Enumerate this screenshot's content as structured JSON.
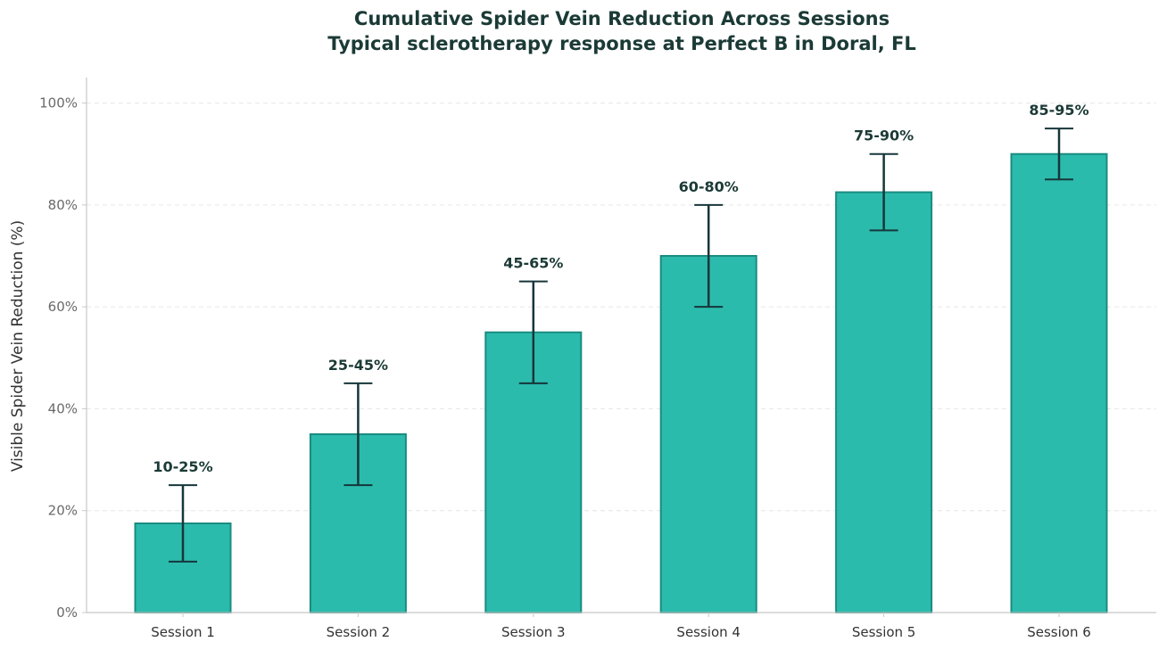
{
  "chart_data": {
    "type": "bar",
    "title": "Cumulative Spider Vein Reduction Across Sessions",
    "subtitle": "Typical sclerotherapy response at Perfect B in Doral, FL",
    "xlabel": "",
    "ylabel": "Visible Spider Vein Reduction (%)",
    "ylim": [
      0,
      105
    ],
    "yticks": [
      0,
      20,
      40,
      60,
      80,
      100
    ],
    "ytick_labels": [
      "0%",
      "20%",
      "40%",
      "60%",
      "80%",
      "100%"
    ],
    "categories": [
      "Session 1",
      "Session 2",
      "Session 3",
      "Session 4",
      "Session 5",
      "Session 6"
    ],
    "values": [
      17.5,
      35,
      55,
      70,
      82.5,
      90
    ],
    "error_low": [
      10,
      25,
      45,
      60,
      75,
      85
    ],
    "error_high": [
      25,
      45,
      65,
      80,
      90,
      95
    ],
    "data_labels": [
      "10-25%",
      "25-45%",
      "45-65%",
      "60-80%",
      "75-90%",
      "85-95%"
    ],
    "grid": "horizontal dashed",
    "colors": {
      "bar_fill": "#2bbbad",
      "bar_edge": "#1a8c80",
      "error_bar": "#16363a",
      "label": "#1b3a36",
      "axis": "#c8c8c8",
      "grid": "#e6e6e6",
      "tick_text": "#6a6a6a"
    }
  }
}
